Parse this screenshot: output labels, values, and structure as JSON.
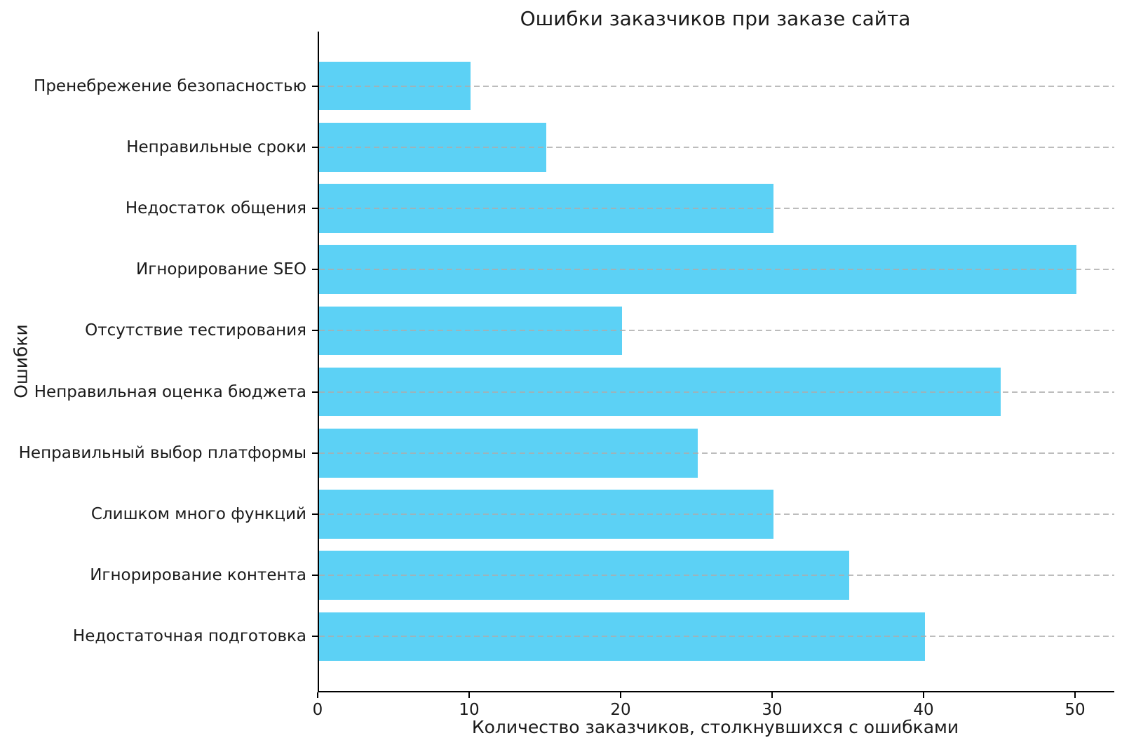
{
  "figure": {
    "background": "#ffffff"
  },
  "chart_data": {
    "type": "bar",
    "orientation": "horizontal",
    "title": "Ошибки заказчиков при заказе сайта",
    "xlabel": "Количество заказчиков, столкнувшихся с ошибками",
    "ylabel": "Ошибки",
    "categories": [
      "Пренебрежение безопасностью",
      "Неправильные сроки",
      "Недостаток общения",
      "Игнорирование SEO",
      "Отсутствие тестирования",
      "Неправильная оценка бюджета",
      "Неправильный выбор платформы",
      "Слишком много функций",
      "Игнорирование контента",
      "Недостаточная подготовка"
    ],
    "values": [
      10,
      15,
      30,
      50,
      20,
      45,
      25,
      30,
      35,
      40
    ],
    "x_ticks": [
      0,
      10,
      20,
      30,
      40,
      50
    ],
    "xlim": [
      0,
      52.5
    ],
    "bar_color": "#5cd1f5",
    "grid": {
      "axis": "y",
      "style": "dashed",
      "color": "#cccccc",
      "on": true
    },
    "legend_position": "none",
    "text_color": "#1a1a1a",
    "spine_color": "#000000"
  }
}
